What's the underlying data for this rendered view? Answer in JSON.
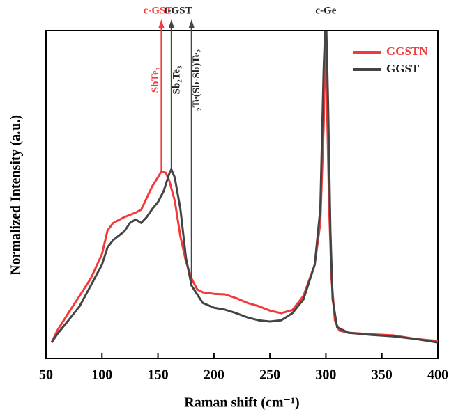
{
  "chart_data": {
    "type": "line",
    "x_label": "Raman shift (cm⁻¹)",
    "y_label": "Normalized Intensity (a.u.)",
    "xlim": [
      50,
      400
    ],
    "xticks": [
      50,
      100,
      150,
      200,
      250,
      300,
      350,
      400
    ],
    "ylim": [
      -0.054,
      1.057
    ],
    "legend": "top-right",
    "series": [
      {
        "name": "GGSTN",
        "color": "#f23a3a",
        "x": [
          55,
          60,
          70,
          80,
          90,
          100,
          105,
          110,
          120,
          130,
          135,
          140,
          145,
          150,
          153,
          157,
          160,
          165,
          170,
          175,
          180,
          185,
          190,
          200,
          210,
          220,
          230,
          240,
          250,
          260,
          270,
          280,
          290,
          295,
          298,
          299.5,
          301,
          303,
          305,
          308,
          312,
          320,
          340,
          360,
          380,
          400
        ],
        "values": [
          0,
          0.04,
          0.1,
          0.158,
          0.217,
          0.3,
          0.38,
          0.405,
          0.425,
          0.44,
          0.45,
          0.49,
          0.53,
          0.56,
          0.58,
          0.575,
          0.55,
          0.48,
          0.36,
          0.275,
          0.217,
          0.18,
          0.17,
          0.165,
          0.163,
          0.15,
          0.134,
          0.123,
          0.108,
          0.099,
          0.11,
          0.158,
          0.264,
          0.405,
          0.736,
          1.0,
          0.81,
          0.45,
          0.217,
          0.075,
          0.04,
          0.033,
          0.028,
          0.024,
          0.012,
          0.005
        ]
      },
      {
        "name": "GGST",
        "color": "#444444",
        "x": [
          55,
          60,
          70,
          80,
          90,
          100,
          105,
          110,
          120,
          125,
          130,
          135,
          140,
          145,
          150,
          155,
          160,
          162,
          165,
          170,
          175,
          180,
          190,
          200,
          210,
          220,
          230,
          240,
          250,
          260,
          270,
          280,
          290,
          295,
          298,
          300,
          302,
          304,
          306,
          310,
          320,
          340,
          360,
          380,
          400
        ],
        "values": [
          0,
          0.028,
          0.075,
          0.123,
          0.193,
          0.264,
          0.323,
          0.347,
          0.377,
          0.405,
          0.417,
          0.405,
          0.425,
          0.453,
          0.476,
          0.512,
          0.571,
          0.587,
          0.559,
          0.453,
          0.288,
          0.193,
          0.134,
          0.118,
          0.111,
          0.099,
          0.085,
          0.075,
          0.071,
          0.075,
          0.099,
          0.146,
          0.264,
          0.453,
          0.925,
          1.13,
          0.81,
          0.38,
          0.146,
          0.052,
          0.033,
          0.026,
          0.021,
          0.012,
          0
        ]
      }
    ],
    "reference_lines": [
      {
        "x": 153,
        "color": "#f23a3a"
      },
      {
        "x": 162,
        "color": "#444444"
      },
      {
        "x": 180,
        "color": "#444444"
      }
    ],
    "top_labels": [
      {
        "text": "c-GST",
        "x": 150,
        "color": "#f23a3a"
      },
      {
        "text": "t-GST",
        "x": 168,
        "color": "#222222"
      },
      {
        "text": "c-Ge",
        "x": 300,
        "color": "#222222"
      }
    ],
    "band_labels": [
      {
        "text": "SbTe₃",
        "x": 148,
        "color": "#f23a3a"
      },
      {
        "text": "Sb₂Te₃",
        "x": 167,
        "color": "#222222"
      },
      {
        "text": "₂Te(Sb-Sb)Te₂",
        "x": 185,
        "color": "#222222"
      }
    ]
  }
}
